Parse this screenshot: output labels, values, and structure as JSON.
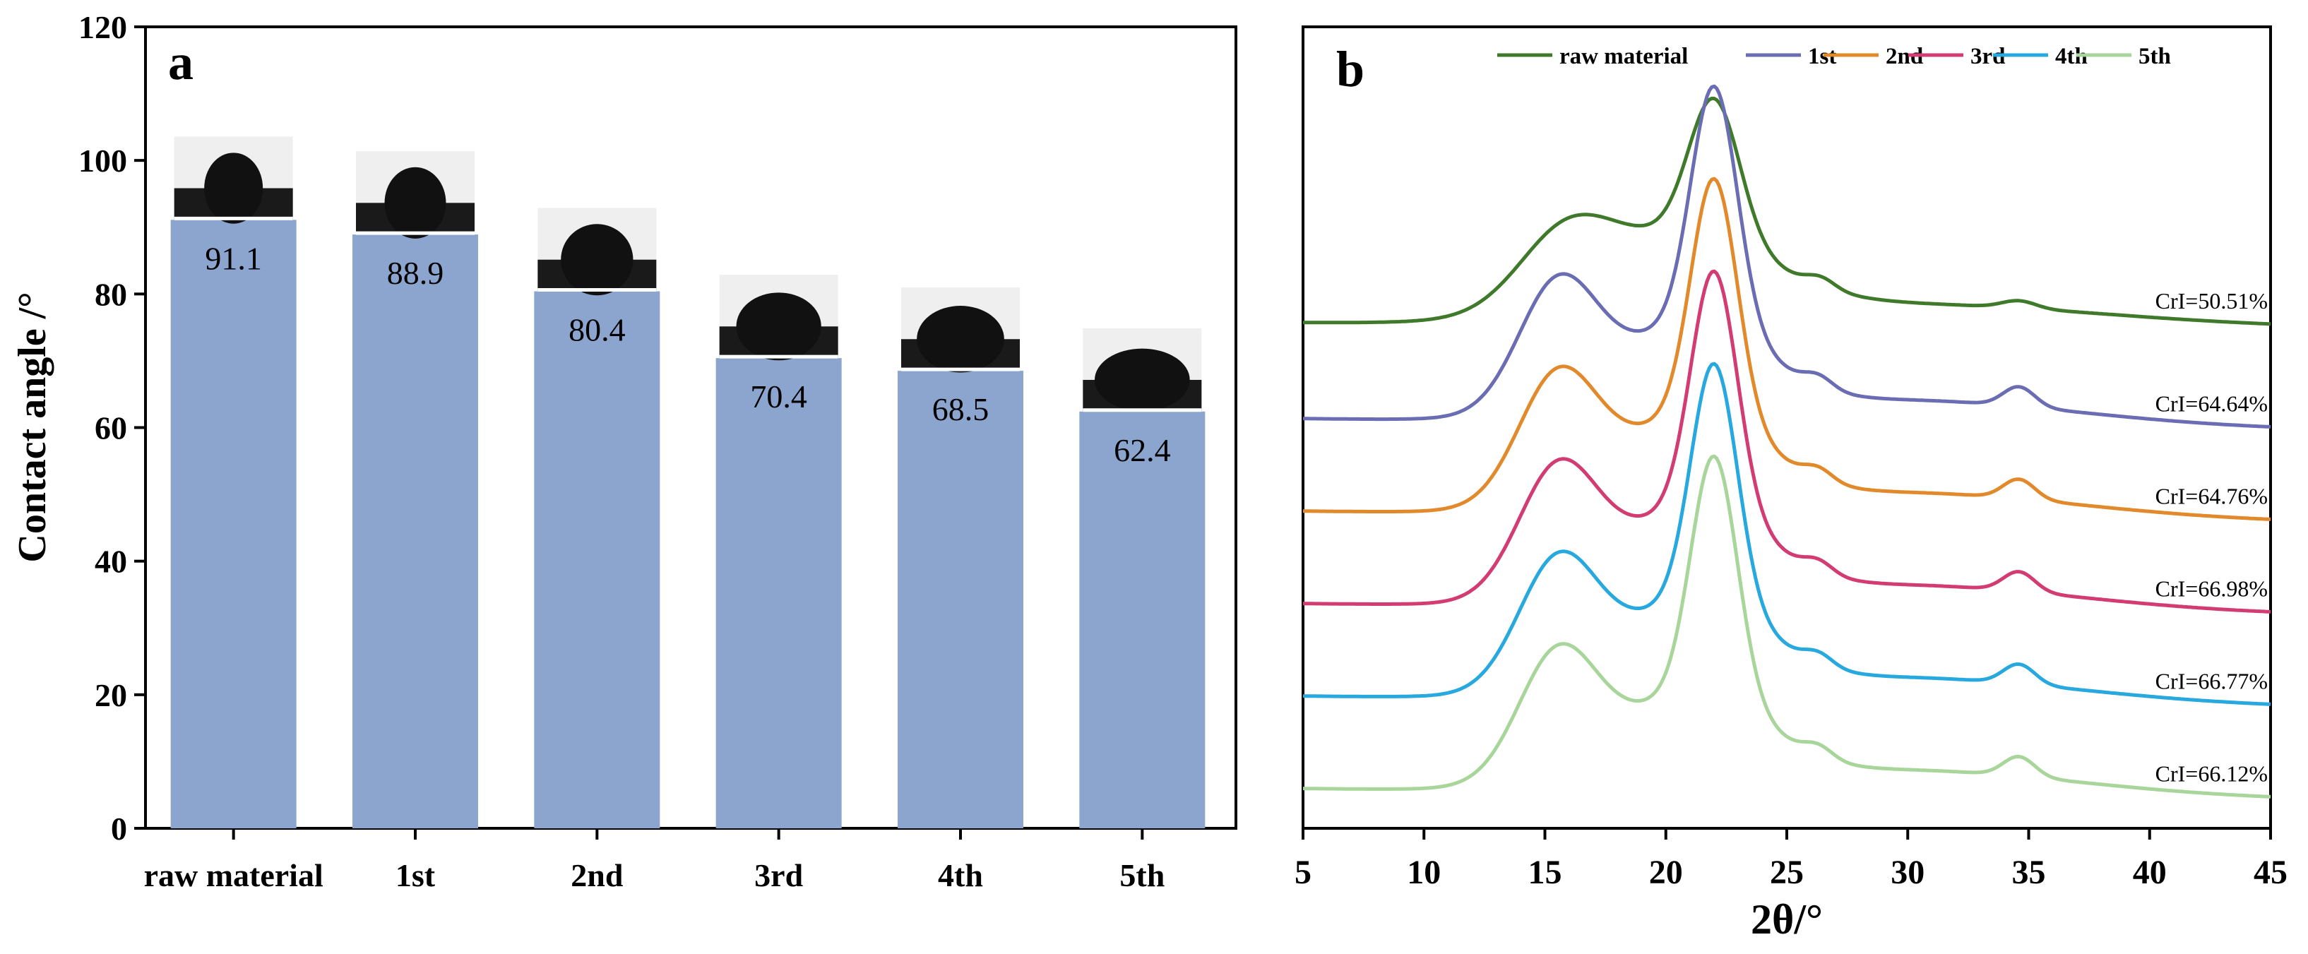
{
  "chart_data": [
    {
      "panel": "a",
      "type": "bar",
      "ylabel": "Contact angle /°",
      "xlabel": "",
      "ylim": [
        0,
        120
      ],
      "yticks": [
        0,
        20,
        40,
        60,
        80,
        100,
        120
      ],
      "categories": [
        "raw material",
        "1st",
        "2nd",
        "3rd",
        "4th",
        "5th"
      ],
      "values": [
        91.1,
        88.9,
        80.4,
        70.4,
        68.5,
        62.4
      ],
      "labels": [
        "91.1",
        "88.9",
        "80.4",
        "70.4",
        "68.5",
        "62.4"
      ],
      "bar_color": "#8ba5cf",
      "inset_images": "water droplet photo above each bar"
    },
    {
      "panel": "b",
      "type": "line",
      "xlabel": "2θ/°",
      "ylabel": "",
      "xlim": [
        5,
        45
      ],
      "xticks": [
        5,
        10,
        15,
        20,
        25,
        30,
        35,
        40,
        45
      ],
      "ylim": [
        0,
        130
      ],
      "legend_position": "top",
      "series": [
        {
          "name": "raw material",
          "color": "#3f7a2a",
          "offset": 75,
          "scale": 1.0,
          "crl": "CrI=50.51%"
        },
        {
          "name": "1st",
          "color": "#6a6db3",
          "offset": 60,
          "scale": 1.45,
          "crl": "CrI=64.64%"
        },
        {
          "name": "2nd",
          "color": "#e28a2b",
          "offset": 45,
          "scale": 1.45,
          "crl": "CrI=64.76%"
        },
        {
          "name": "3rd",
          "color": "#d23c73",
          "offset": 30,
          "scale": 1.45,
          "crl": "CrI=66.98%"
        },
        {
          "name": "4th",
          "color": "#27a8de",
          "offset": 15,
          "scale": 1.45,
          "crl": "CrI=66.77%"
        },
        {
          "name": "5th",
          "color": "#a8d59a",
          "offset": 0,
          "scale": 1.45,
          "crl": "CrI=66.12%"
        }
      ]
    }
  ]
}
